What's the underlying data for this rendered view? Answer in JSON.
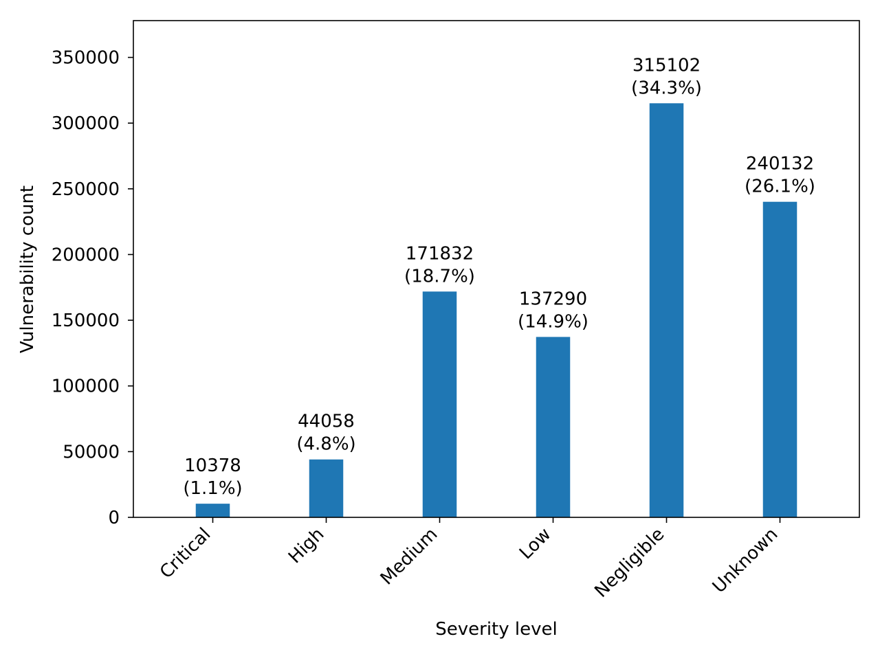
{
  "chart_data": {
    "type": "bar",
    "title": "",
    "xlabel": "Severity level",
    "ylabel": "Vulnerability count",
    "categories": [
      "Critical",
      "High",
      "Medium",
      "Low",
      "Negligible",
      "Unknown"
    ],
    "values": [
      10378,
      44058,
      171832,
      137290,
      315102,
      240132
    ],
    "value_labels": [
      "10378",
      "44058",
      "171832",
      "137290",
      "315102",
      "240132"
    ],
    "percent_labels": [
      "(1.1%)",
      "(4.8%)",
      "(18.7%)",
      "(14.9%)",
      "(34.3%)",
      "(26.1%)"
    ],
    "ylim": [
      0,
      378000
    ],
    "yticks": [
      0,
      50000,
      100000,
      150000,
      200000,
      250000,
      300000,
      350000
    ],
    "ytick_labels": [
      "0",
      "50000",
      "100000",
      "150000",
      "200000",
      "250000",
      "300000",
      "350000"
    ],
    "bar_color": "#1f77b4",
    "grid": false,
    "legend": "none"
  }
}
